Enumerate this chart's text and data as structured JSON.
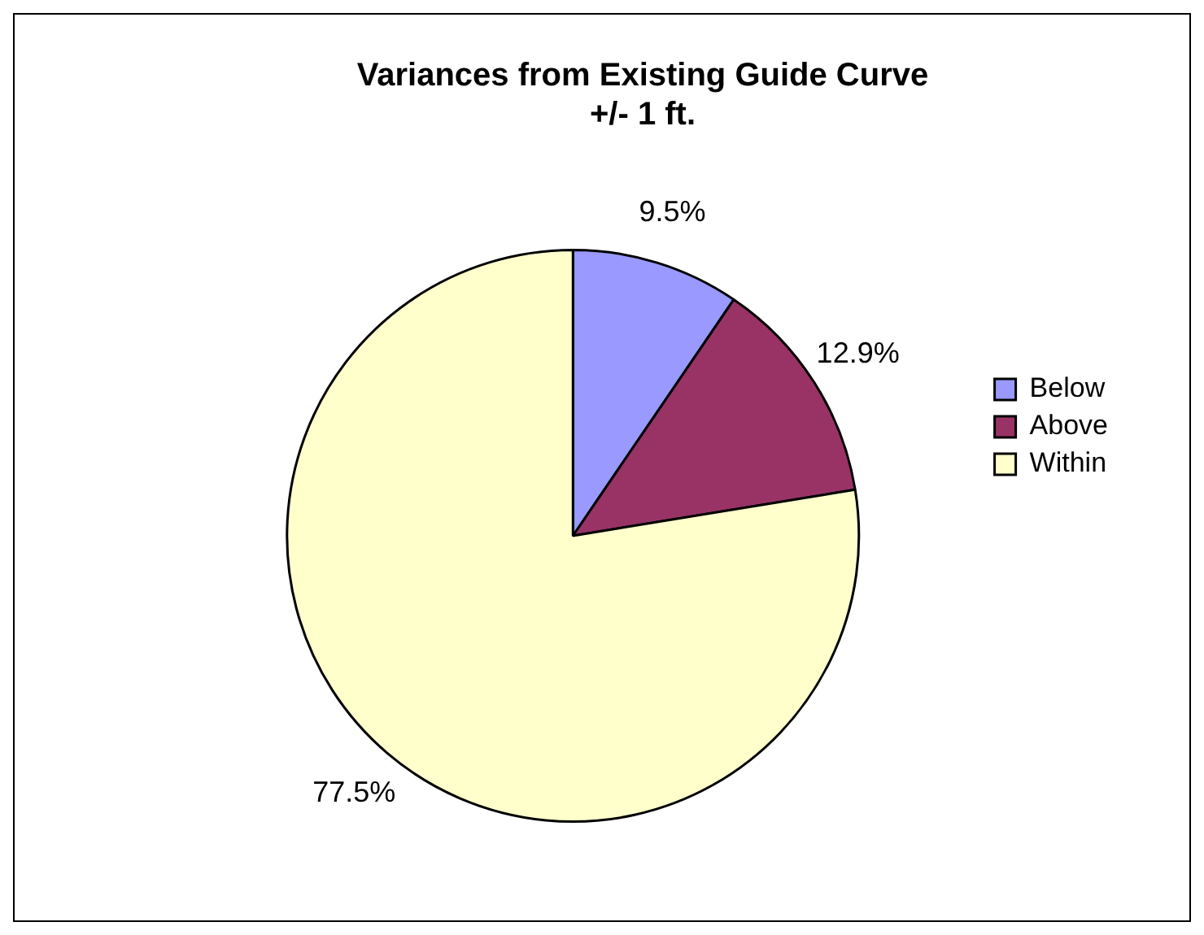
{
  "chart_data": {
    "type": "pie",
    "title": "Variances from Existing Guide Curve\n+/- 1 ft.",
    "categories": [
      "Below",
      "Above",
      "Within"
    ],
    "values": [
      9.5,
      12.9,
      77.5
    ],
    "colors": [
      "#9999ff",
      "#993366",
      "#ffffcc"
    ],
    "value_labels": [
      "9.5%",
      "12.9%",
      "77.5%"
    ],
    "legend": "right"
  }
}
